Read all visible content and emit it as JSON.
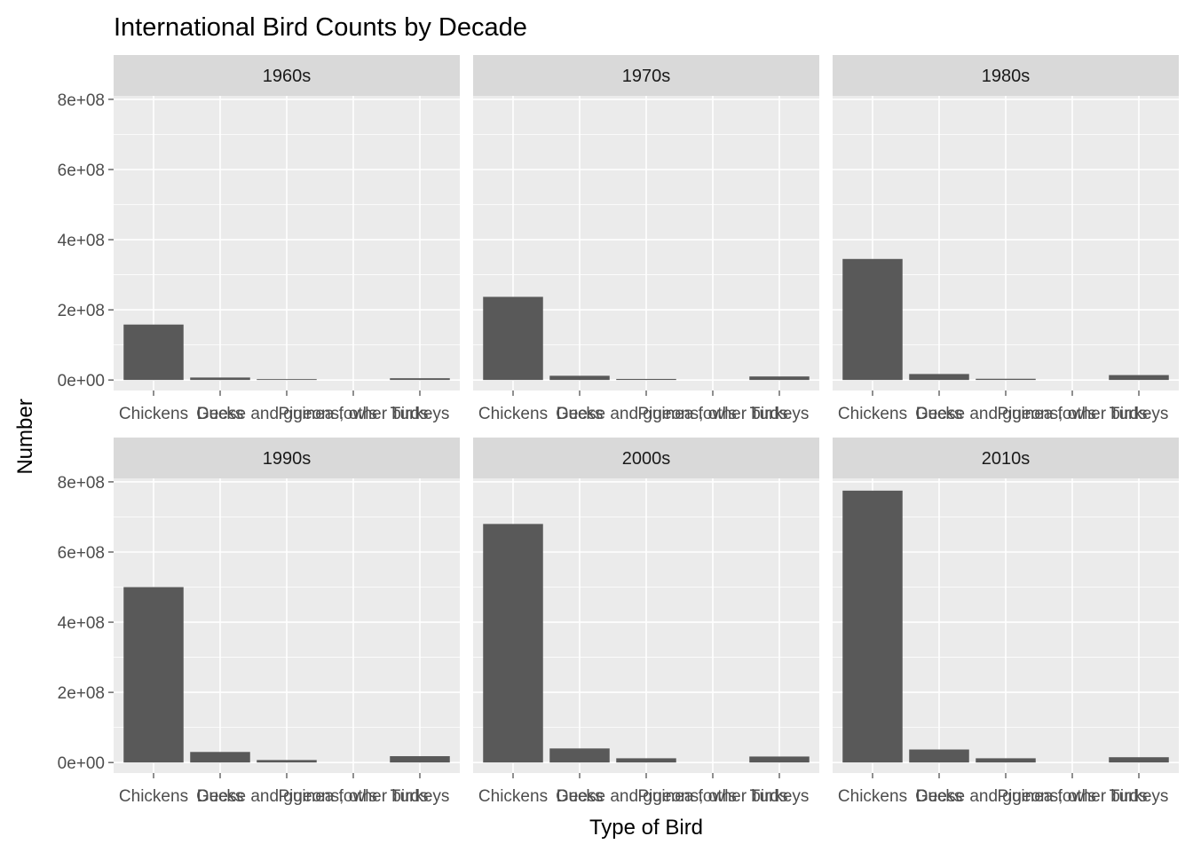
{
  "chart_data": {
    "type": "bar",
    "title": "International Bird Counts by Decade",
    "xlabel": "Type of Bird",
    "ylabel": "Number",
    "categories": [
      "Chickens",
      "Ducks",
      "Geese and guinea fowls",
      "Pigeons, other birds",
      "Turkeys"
    ],
    "y_ticks": [
      0,
      200000000,
      400000000,
      600000000,
      800000000
    ],
    "y_tick_labels": [
      "0e+00",
      "2e+08",
      "4e+08",
      "6e+08",
      "8e+08"
    ],
    "ylim": [
      -30000000,
      810000000
    ],
    "facets": [
      {
        "label": "1960s",
        "values": [
          158000000,
          7000000,
          2500000,
          150000,
          5000000
        ]
      },
      {
        "label": "1970s",
        "values": [
          237000000,
          12000000,
          3000000,
          150000,
          10000000
        ]
      },
      {
        "label": "1980s",
        "values": [
          345000000,
          17000000,
          3500000,
          200000,
          14000000
        ]
      },
      {
        "label": "1990s",
        "values": [
          500000000,
          30000000,
          7000000,
          200000,
          18000000
        ]
      },
      {
        "label": "2000s",
        "values": [
          680000000,
          40000000,
          12000000,
          200000,
          17000000
        ]
      },
      {
        "label": "2010s",
        "values": [
          775000000,
          37000000,
          12000000,
          200000,
          15000000
        ]
      }
    ],
    "bar_color": "#595959",
    "panel_background": "#ebebeb",
    "strip_background": "#d9d9d9",
    "grid": true,
    "legend": "none"
  }
}
